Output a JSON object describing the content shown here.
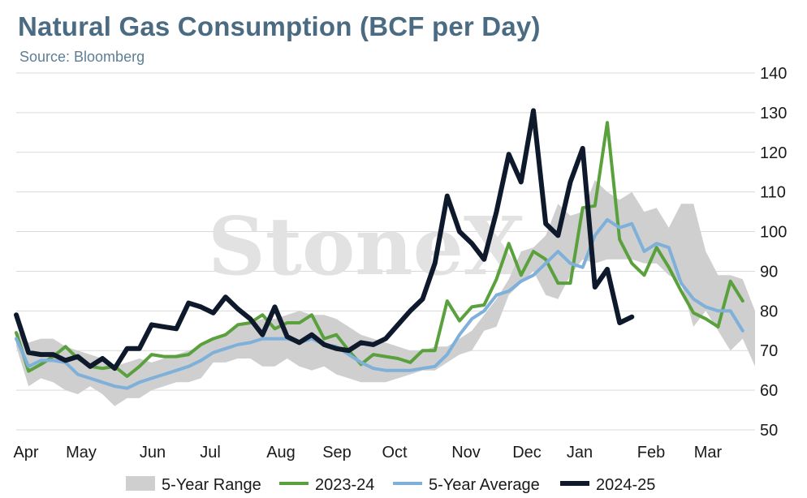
{
  "header": {
    "title": "Natural Gas Consumption (BCF per Day)",
    "subtitle": "Source: Bloomberg"
  },
  "watermark": "StoneX",
  "colors": {
    "range": "#cfcfcf",
    "s2324": "#5aa13e",
    "avg": "#7eb0da",
    "s2425": "#0e1a2b",
    "grid": "#d9d9d9"
  },
  "chart_data": {
    "type": "line",
    "x_month_labels": [
      "Apr",
      "May",
      "Jun",
      "Jul",
      "Aug",
      "Sep",
      "Oct",
      "Nov",
      "Dec",
      "Jan",
      "Feb",
      "Mar"
    ],
    "y_ticks": [
      50,
      60,
      70,
      80,
      90,
      100,
      110,
      120,
      130,
      140
    ],
    "ylim": [
      50,
      140
    ],
    "grid": true,
    "legend_position": "bottom",
    "series": [
      {
        "name": "5-Year Range",
        "kind": "band",
        "lower": [
          71,
          61,
          63,
          62,
          60,
          59,
          61,
          59,
          56,
          58,
          58,
          60,
          61,
          62,
          62,
          63,
          67,
          67,
          68,
          68,
          66,
          66,
          68,
          66,
          65,
          66,
          64,
          63,
          62,
          62,
          62,
          63,
          64,
          65,
          65,
          67,
          69,
          70,
          75,
          76,
          84,
          87,
          90,
          84,
          83,
          89,
          93,
          92,
          93,
          93,
          93,
          92,
          92,
          89,
          87,
          76,
          80,
          75,
          70,
          73,
          66
        ],
        "upper": [
          75,
          72,
          73,
          73,
          71,
          70,
          69,
          68,
          66,
          67,
          68,
          67,
          68,
          69,
          70,
          71,
          73,
          74,
          76,
          77,
          78,
          78,
          79,
          80,
          79,
          79,
          78,
          76,
          74,
          73,
          72,
          71,
          70,
          70,
          71,
          71,
          73,
          75,
          79,
          83,
          88,
          95,
          96,
          99,
          107,
          104,
          105,
          113,
          110,
          108,
          110,
          105,
          106,
          101,
          107,
          107,
          95,
          89,
          89,
          88,
          80
        ],
        "color_key": "range"
      },
      {
        "name": "2023-24",
        "color_key": "s2324",
        "values": [
          74.5,
          64.8,
          66.5,
          68.5,
          71,
          68,
          66,
          65.5,
          66,
          63.5,
          66,
          69,
          68.5,
          68.5,
          69,
          71.5,
          73,
          74,
          76.5,
          77,
          79,
          75.5,
          77,
          77,
          79,
          73,
          74,
          70,
          66.5,
          69,
          68.5,
          68,
          67,
          70,
          70,
          82.5,
          77.5,
          81,
          81.5,
          88,
          97,
          89,
          95,
          93,
          87,
          87,
          106,
          106.5,
          127.5,
          98,
          92,
          89,
          96,
          91,
          85,
          79.5,
          78,
          76,
          87.5,
          82.5
        ]
      },
      {
        "name": "5-Year Average",
        "color_key": "avg",
        "values": [
          73,
          66,
          67.5,
          67.5,
          67,
          64,
          63,
          62,
          61,
          60.5,
          62,
          63,
          64,
          65,
          66,
          67.5,
          69.5,
          70.5,
          71.5,
          72,
          73,
          73,
          73,
          72,
          73,
          71.5,
          71,
          69,
          67,
          65.5,
          65,
          65,
          65,
          65.5,
          66,
          69,
          74,
          78,
          80,
          84,
          85,
          87.5,
          89,
          92,
          95,
          92,
          91,
          99,
          103,
          101,
          102,
          95,
          97,
          96,
          87,
          83,
          81,
          80,
          80,
          75
        ]
      },
      {
        "name": "2024-25",
        "color_key": "s2425",
        "values": [
          79,
          69.5,
          69,
          69,
          67.5,
          68.5,
          66,
          68,
          65.5,
          70.5,
          70.5,
          76.5,
          76,
          75.5,
          82,
          81,
          79.5,
          83.5,
          80.5,
          78,
          74,
          81,
          73.5,
          72,
          74,
          71.5,
          70.5,
          70,
          72,
          71.5,
          73,
          76.5,
          80,
          83,
          92,
          109,
          100,
          97,
          93,
          105,
          119.5,
          112.5,
          130.5,
          102,
          99,
          112.5,
          121,
          86,
          90.5,
          77,
          78.5
        ]
      }
    ]
  },
  "legend": [
    {
      "label": "5-Year Range",
      "kind": "swatch",
      "color_key": "range"
    },
    {
      "label": "2023-24",
      "kind": "line",
      "color_key": "s2324"
    },
    {
      "label": "5-Year Average",
      "kind": "line",
      "color_key": "avg"
    },
    {
      "label": "2024-25",
      "kind": "line",
      "color_key": "s2425"
    }
  ]
}
